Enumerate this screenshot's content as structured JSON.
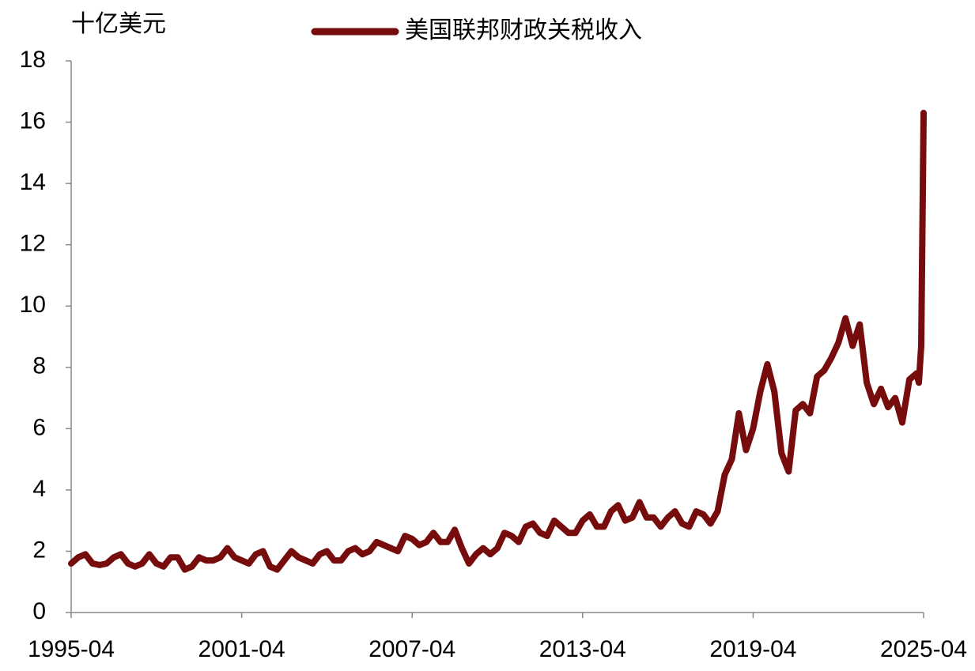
{
  "chart_data": {
    "type": "line",
    "y_unit": "十亿美元",
    "x": [
      "1995-04",
      "1995-07",
      "1995-10",
      "1996-01",
      "1996-04",
      "1996-07",
      "1996-10",
      "1997-01",
      "1997-04",
      "1997-07",
      "1997-10",
      "1998-01",
      "1998-04",
      "1998-07",
      "1998-10",
      "1999-01",
      "1999-04",
      "1999-07",
      "1999-10",
      "2000-01",
      "2000-04",
      "2000-07",
      "2000-10",
      "2001-01",
      "2001-04",
      "2001-07",
      "2001-10",
      "2002-01",
      "2002-04",
      "2002-07",
      "2002-10",
      "2003-01",
      "2003-04",
      "2003-07",
      "2003-10",
      "2004-01",
      "2004-04",
      "2004-07",
      "2004-10",
      "2005-01",
      "2005-04",
      "2005-07",
      "2005-10",
      "2006-01",
      "2006-04",
      "2006-07",
      "2006-10",
      "2007-01",
      "2007-04",
      "2007-07",
      "2007-10",
      "2008-01",
      "2008-04",
      "2008-07",
      "2008-10",
      "2009-01",
      "2009-04",
      "2009-07",
      "2009-10",
      "2010-01",
      "2010-04",
      "2010-07",
      "2010-10",
      "2011-01",
      "2011-04",
      "2011-07",
      "2011-10",
      "2012-01",
      "2012-04",
      "2012-07",
      "2012-10",
      "2013-01",
      "2013-04",
      "2013-07",
      "2013-10",
      "2014-01",
      "2014-04",
      "2014-07",
      "2014-10",
      "2015-01",
      "2015-04",
      "2015-07",
      "2015-10",
      "2016-01",
      "2016-04",
      "2016-07",
      "2016-10",
      "2017-01",
      "2017-04",
      "2017-07",
      "2017-10",
      "2018-01",
      "2018-04",
      "2018-07",
      "2018-10",
      "2019-01",
      "2019-04",
      "2019-07",
      "2019-10",
      "2020-01",
      "2020-04",
      "2020-07",
      "2020-10",
      "2021-01",
      "2021-04",
      "2021-07",
      "2021-10",
      "2022-01",
      "2022-04",
      "2022-07",
      "2022-10",
      "2023-01",
      "2023-04",
      "2023-07",
      "2023-10",
      "2024-01",
      "2024-04",
      "2024-07",
      "2024-10",
      "2025-01",
      "2025-02",
      "2025-03",
      "2025-04"
    ],
    "series": [
      {
        "name": "美国联邦财政关税收入",
        "color": "#760c0c",
        "values": [
          1.6,
          1.8,
          1.9,
          1.6,
          1.55,
          1.6,
          1.8,
          1.9,
          1.6,
          1.5,
          1.6,
          1.9,
          1.6,
          1.5,
          1.8,
          1.8,
          1.4,
          1.5,
          1.8,
          1.7,
          1.7,
          1.8,
          2.1,
          1.8,
          1.7,
          1.6,
          1.9,
          2.0,
          1.5,
          1.4,
          1.7,
          2.0,
          1.8,
          1.7,
          1.6,
          1.9,
          2.0,
          1.7,
          1.7,
          2.0,
          2.1,
          1.9,
          2.0,
          2.3,
          2.2,
          2.1,
          2.0,
          2.5,
          2.4,
          2.2,
          2.3,
          2.6,
          2.3,
          2.3,
          2.7,
          2.1,
          1.6,
          1.9,
          2.1,
          1.9,
          2.1,
          2.6,
          2.5,
          2.3,
          2.8,
          2.9,
          2.6,
          2.5,
          3.0,
          2.8,
          2.6,
          2.6,
          3.0,
          3.2,
          2.8,
          2.8,
          3.3,
          3.5,
          3.0,
          3.1,
          3.6,
          3.1,
          3.1,
          2.8,
          3.1,
          3.3,
          2.9,
          2.8,
          3.3,
          3.2,
          2.9,
          3.3,
          4.5,
          5.0,
          6.5,
          5.3,
          6.0,
          7.2,
          8.1,
          7.2,
          5.2,
          4.6,
          6.6,
          6.8,
          6.5,
          7.7,
          7.9,
          8.3,
          8.8,
          9.6,
          8.7,
          9.4,
          7.5,
          6.8,
          7.3,
          6.7,
          7.0,
          6.2,
          7.6,
          7.8,
          7.5,
          8.7,
          16.3
        ]
      }
    ],
    "xlim": [
      "1995-04",
      "2025-04"
    ],
    "xticks": [
      "1995-04",
      "2001-04",
      "2007-04",
      "2013-04",
      "2019-04",
      "2025-04"
    ],
    "ylim": [
      0,
      18
    ],
    "yticks": [
      0,
      2,
      4,
      6,
      8,
      10,
      12,
      14,
      16,
      18
    ],
    "grid": false
  }
}
